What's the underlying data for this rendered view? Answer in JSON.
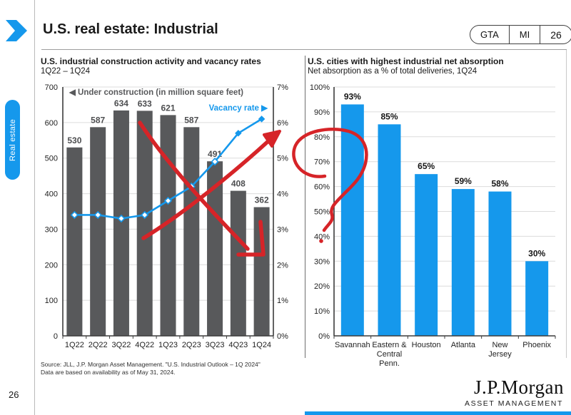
{
  "page": {
    "header": {
      "title": "U.S. real estate: Industrial",
      "nav": [
        "GTA",
        "MI",
        "26"
      ]
    },
    "sidebar_tab": "Real estate",
    "page_number": "26",
    "footer": {
      "source_line1": "Source: JLL, J.P. Morgan Asset Management. \"U.S. Industrial Outlook – 1Q 2024\"",
      "source_line2": "Data are based on availability as of May 31, 2024.",
      "logo": "J.P.Morgan",
      "logo_sub": "ASSET MANAGEMENT"
    }
  },
  "chart_data": [
    {
      "type": "bar",
      "title": "U.S. industrial construction activity and vacancy rates",
      "subtitle": "1Q22 – 1Q24",
      "categories": [
        "1Q22",
        "2Q22",
        "3Q22",
        "4Q22",
        "1Q23",
        "2Q23",
        "3Q23",
        "4Q23",
        "1Q24"
      ],
      "series": [
        {
          "name": "Under construction (in million square feet)",
          "type": "bar",
          "values": [
            530,
            587,
            634,
            633,
            621,
            587,
            491,
            408,
            362
          ],
          "axis": "left"
        },
        {
          "name": "Vacancy rate",
          "type": "line",
          "values": [
            3.4,
            3.4,
            3.3,
            3.4,
            3.8,
            4.2,
            4.9,
            5.7,
            6.1
          ],
          "axis": "right",
          "solid_marker_from_index": 7
        }
      ],
      "legend": {
        "bar_label": "◀ Under construction (in million square feet)",
        "line_label": "Vacancy rate ▶"
      },
      "left_axis": {
        "min": 0,
        "max": 700,
        "step": 100,
        "suffix": ""
      },
      "right_axis": {
        "min": 0,
        "max": 7,
        "step": 1,
        "suffix": "%"
      },
      "grid": true,
      "legend_position": "inside-top"
    },
    {
      "type": "bar",
      "title": "U.S. cities with highest industrial net absorption",
      "subtitle": "Net absorption as a % of total deliveries, 1Q24",
      "categories": [
        "Savannah",
        "Eastern & Central Penn.",
        "Houston",
        "Atlanta",
        "New Jersey",
        "Phoenix"
      ],
      "category_lines": [
        [
          "Savannah"
        ],
        [
          "Eastern &",
          "Central",
          "Penn."
        ],
        [
          "Houston"
        ],
        [
          "Atlanta"
        ],
        [
          "New",
          "Jersey"
        ],
        [
          "Phoenix"
        ]
      ],
      "values": [
        93,
        85,
        65,
        59,
        58,
        30
      ],
      "labels": [
        "93%",
        "85%",
        "65%",
        "59%",
        "58%",
        "30%"
      ],
      "yaxis": {
        "min": 0,
        "max": 100,
        "step": 10,
        "suffix": "%"
      },
      "grid": true
    }
  ],
  "annotation": {
    "description": "hand-drawn red marker: downward arrow, upward arrow, loop scribble with dot"
  },
  "colors": {
    "blue": "#1598EC",
    "bar_gray": "#58595B",
    "red": "#D62428",
    "grid": "#DCDCDC",
    "axis": "#3C3C3C",
    "value_label_gray": "#4D4E50",
    "value_label_black": "#161616"
  }
}
